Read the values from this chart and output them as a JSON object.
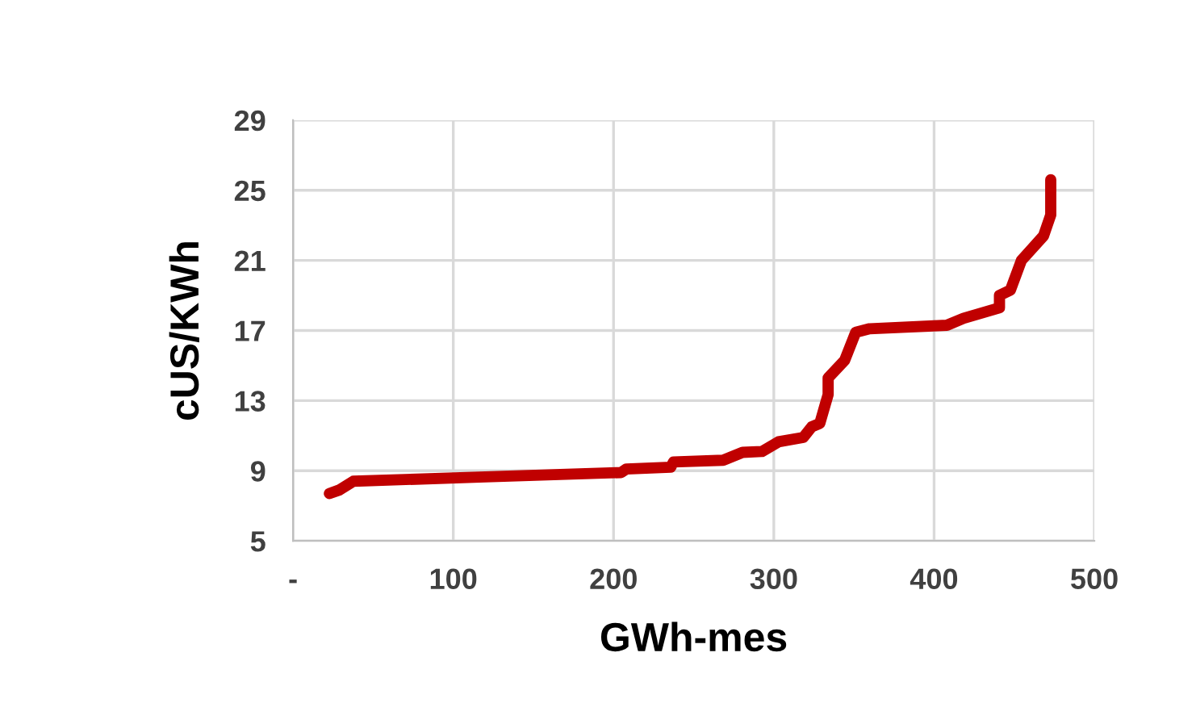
{
  "chart_data": {
    "type": "line",
    "xlabel": "GWh-mes",
    "ylabel": "cUS/KWh",
    "series": [
      {
        "color": "#c00000",
        "x": [
          22.7,
          28.9,
          37.6,
          120,
          204.7,
          208,
          235.7,
          237.4,
          268.4,
          280.5,
          292.6,
          302.9,
          318.4,
          323.6,
          328.7,
          333.9,
          333.9,
          344.2,
          351.1,
          359.8,
          408,
          418.4,
          440.8,
          440.8,
          447.6,
          454.5,
          468.3,
          472.8,
          472.8
        ],
        "values": [
          7.7,
          7.9,
          8.4,
          8.65,
          8.9,
          9.1,
          9.2,
          9.5,
          9.6,
          10.05,
          10.1,
          10.65,
          10.9,
          11.5,
          11.7,
          13.35,
          14.3,
          15.3,
          16.9,
          17.1,
          17.3,
          17.7,
          18.3,
          19.0,
          19.3,
          21.0,
          22.4,
          23.6,
          25.6
        ]
      }
    ],
    "xlim": [
      0,
      500
    ],
    "xticks": [
      {
        "value": 0,
        "label": "-"
      },
      100,
      200,
      300,
      400,
      500
    ],
    "ylim": [
      5,
      29
    ],
    "yticks": [
      5,
      9,
      13,
      17,
      21,
      25,
      29
    ],
    "grid": true,
    "marker": "none",
    "line_style": "solid"
  }
}
